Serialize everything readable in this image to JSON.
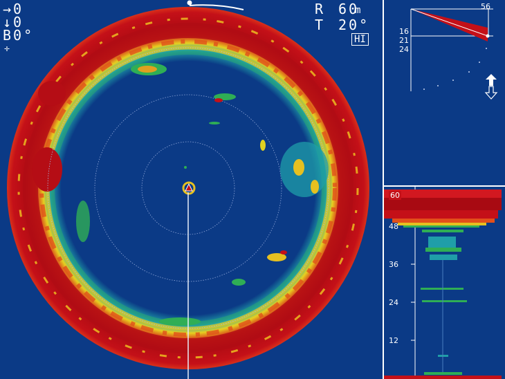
{
  "status": {
    "train_label": "→0",
    "tilt_label": "↓0",
    "bearing_label": "B0°",
    "cursor_symbol": "✛"
  },
  "range": {
    "label": "R",
    "value": "60",
    "unit": "m"
  },
  "tilt": {
    "label": "T",
    "value": "20°"
  },
  "gain_mode": "HI",
  "inclination": {
    "top_value": "56",
    "row1": "16",
    "row2": "21",
    "row3": "24"
  },
  "echo_sounder": {
    "scale_labels": [
      "60",
      "48",
      "36",
      "24",
      "12"
    ],
    "colors": {
      "strong": "#c41018",
      "mid": "#e23a18",
      "yellow": "#f0d020",
      "green": "#2fae55",
      "cyan": "#1fa7a6"
    }
  },
  "colors": {
    "background": "#0b3a86",
    "text": "#ffffff",
    "strong_echo": "#b60f16"
  }
}
